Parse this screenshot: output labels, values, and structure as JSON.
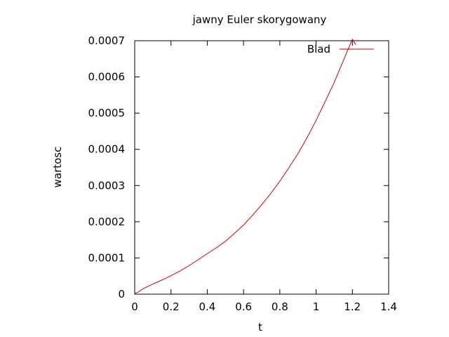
{
  "chart_data": {
    "type": "line",
    "title": "jawny Euler skorygowany",
    "xlabel": "t",
    "ylabel": "wartosc",
    "xlim": [
      0,
      1.4
    ],
    "ylim": [
      0,
      0.0007
    ],
    "x_ticks": [
      {
        "value": 0,
        "label": "0"
      },
      {
        "value": 0.2,
        "label": "0.2"
      },
      {
        "value": 0.4,
        "label": "0.4"
      },
      {
        "value": 0.6,
        "label": "0.6"
      },
      {
        "value": 0.8,
        "label": "0.8"
      },
      {
        "value": 1.0,
        "label": "1"
      },
      {
        "value": 1.2,
        "label": "1.2"
      },
      {
        "value": 1.4,
        "label": "1.4"
      }
    ],
    "y_ticks": [
      {
        "value": 0,
        "label": "0"
      },
      {
        "value": 0.0001,
        "label": "0.0001"
      },
      {
        "value": 0.0002,
        "label": "0.0002"
      },
      {
        "value": 0.0003,
        "label": "0.0003"
      },
      {
        "value": 0.0004,
        "label": "0.0004"
      },
      {
        "value": 0.0005,
        "label": "0.0005"
      },
      {
        "value": 0.0006,
        "label": "0.0006"
      },
      {
        "value": 0.0007,
        "label": "0.0007"
      }
    ],
    "grid": false,
    "legend": "top-right",
    "series": [
      {
        "name": "Blad",
        "color": "#cc0000",
        "x": [
          0,
          0.02,
          0.05,
          0.1,
          0.15,
          0.2,
          0.25,
          0.3,
          0.35,
          0.4,
          0.45,
          0.5,
          0.55,
          0.6,
          0.65,
          0.7,
          0.75,
          0.8,
          0.85,
          0.9,
          0.95,
          1.0,
          1.05,
          1.1,
          1.15,
          1.2,
          1.22
        ],
        "y": [
          1.5e-06,
          6e-06,
          1.6e-05,
          2.8e-05,
          3.9e-05,
          5.1e-05,
          6.4e-05,
          7.9e-05,
          9.5e-05,
          0.000112,
          0.000128,
          0.000146,
          0.000168,
          0.000191,
          0.000218,
          0.000247,
          0.000278,
          0.000312,
          0.000349,
          0.000388,
          0.000432,
          0.00048,
          0.000532,
          0.000585,
          0.000645,
          0.000704,
          0.000689
        ]
      }
    ]
  }
}
